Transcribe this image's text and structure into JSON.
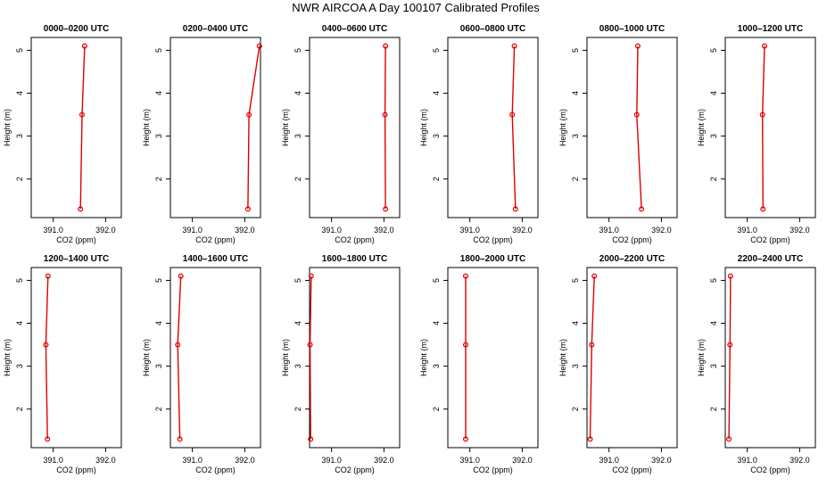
{
  "figure": {
    "title": "NWR AIRCOA A  Day 100107  Calibrated Profiles",
    "line_color": "#dd0000",
    "marker_color": "#dd0000"
  },
  "chart_data": [
    {
      "type": "line",
      "title": "0000–0200 UTC",
      "xlabel": "CO2 (ppm)",
      "ylabel": "Height (m)",
      "xlim": [
        390.58,
        392.3
      ],
      "ylim": [
        1.1,
        5.3
      ],
      "x_ticks": [
        391.0,
        392.0
      ],
      "y_ticks": [
        2,
        3,
        4,
        5
      ],
      "series": [
        {
          "x": [
            391.52,
            391.55,
            391.6
          ],
          "y": [
            1.3,
            3.5,
            5.1
          ]
        }
      ]
    },
    {
      "type": "line",
      "title": "0200–0400 UTC",
      "xlabel": "CO2 (ppm)",
      "ylabel": "Height (m)",
      "xlim": [
        390.58,
        392.3
      ],
      "ylim": [
        1.1,
        5.3
      ],
      "x_ticks": [
        391.0,
        392.0
      ],
      "y_ticks": [
        2,
        3,
        4,
        5
      ],
      "series": [
        {
          "x": [
            392.06,
            392.08,
            392.28
          ],
          "y": [
            1.3,
            3.5,
            5.1
          ]
        }
      ]
    },
    {
      "type": "line",
      "title": "0400–0600 UTC",
      "xlabel": "CO2 (ppm)",
      "ylabel": "Height (m)",
      "xlim": [
        390.58,
        392.3
      ],
      "ylim": [
        1.1,
        5.3
      ],
      "x_ticks": [
        391.0,
        392.0
      ],
      "y_ticks": [
        2,
        3,
        4,
        5
      ],
      "series": [
        {
          "x": [
            392.03,
            392.02,
            392.03
          ],
          "y": [
            1.3,
            3.5,
            5.1
          ]
        }
      ]
    },
    {
      "type": "line",
      "title": "0600–0800 UTC",
      "xlabel": "CO2 (ppm)",
      "ylabel": "Height (m)",
      "xlim": [
        390.58,
        392.3
      ],
      "ylim": [
        1.1,
        5.3
      ],
      "x_ticks": [
        391.0,
        392.0
      ],
      "y_ticks": [
        2,
        3,
        4,
        5
      ],
      "series": [
        {
          "x": [
            391.87,
            391.81,
            391.85
          ],
          "y": [
            1.3,
            3.5,
            5.1
          ]
        }
      ]
    },
    {
      "type": "line",
      "title": "0800–1000 UTC",
      "xlabel": "CO2 (ppm)",
      "ylabel": "Height (m)",
      "xlim": [
        390.58,
        392.3
      ],
      "ylim": [
        1.1,
        5.3
      ],
      "x_ticks": [
        391.0,
        392.0
      ],
      "y_ticks": [
        2,
        3,
        4,
        5
      ],
      "series": [
        {
          "x": [
            391.62,
            391.53,
            391.55
          ],
          "y": [
            1.3,
            3.5,
            5.1
          ]
        }
      ]
    },
    {
      "type": "line",
      "title": "1000–1200 UTC",
      "xlabel": "CO2 (ppm)",
      "ylabel": "Height (m)",
      "xlim": [
        390.58,
        392.3
      ],
      "ylim": [
        1.1,
        5.3
      ],
      "x_ticks": [
        391.0,
        392.0
      ],
      "y_ticks": [
        2,
        3,
        4,
        5
      ],
      "series": [
        {
          "x": [
            391.3,
            391.29,
            391.33
          ],
          "y": [
            1.3,
            3.5,
            5.1
          ]
        }
      ]
    },
    {
      "type": "line",
      "title": "1200–1400 UTC",
      "xlabel": "CO2 (ppm)",
      "ylabel": "Height (m)",
      "xlim": [
        390.58,
        392.3
      ],
      "ylim": [
        1.1,
        5.3
      ],
      "x_ticks": [
        391.0,
        392.0
      ],
      "y_ticks": [
        2,
        3,
        4,
        5
      ],
      "series": [
        {
          "x": [
            390.89,
            390.86,
            390.9
          ],
          "y": [
            1.3,
            3.5,
            5.1
          ]
        }
      ]
    },
    {
      "type": "line",
      "title": "1400–1600 UTC",
      "xlabel": "CO2 (ppm)",
      "ylabel": "Height (m)",
      "xlim": [
        390.58,
        392.3
      ],
      "ylim": [
        1.1,
        5.3
      ],
      "x_ticks": [
        391.0,
        392.0
      ],
      "y_ticks": [
        2,
        3,
        4,
        5
      ],
      "series": [
        {
          "x": [
            390.76,
            390.72,
            390.78
          ],
          "y": [
            1.3,
            3.5,
            5.1
          ]
        }
      ]
    },
    {
      "type": "line",
      "title": "1600–1800 UTC",
      "xlabel": "CO2 (ppm)",
      "ylabel": "Height (m)",
      "xlim": [
        390.58,
        392.3
      ],
      "ylim": [
        1.1,
        5.3
      ],
      "x_ticks": [
        391.0,
        392.0
      ],
      "y_ticks": [
        2,
        3,
        4,
        5
      ],
      "series": [
        {
          "x": [
            390.6,
            390.59,
            390.61
          ],
          "y": [
            1.3,
            3.5,
            5.1
          ]
        }
      ]
    },
    {
      "type": "line",
      "title": "1800–2000 UTC",
      "xlabel": "CO2 (ppm)",
      "ylabel": "Height (m)",
      "xlim": [
        390.58,
        392.3
      ],
      "ylim": [
        1.1,
        5.3
      ],
      "x_ticks": [
        391.0,
        392.0
      ],
      "y_ticks": [
        2,
        3,
        4,
        5
      ],
      "series": [
        {
          "x": [
            390.92,
            390.92,
            390.92
          ],
          "y": [
            1.3,
            3.5,
            5.1
          ]
        }
      ]
    },
    {
      "type": "line",
      "title": "2000–2200 UTC",
      "xlabel": "CO2 (ppm)",
      "ylabel": "Height (m)",
      "xlim": [
        390.58,
        392.3
      ],
      "ylim": [
        1.1,
        5.3
      ],
      "x_ticks": [
        391.0,
        392.0
      ],
      "y_ticks": [
        2,
        3,
        4,
        5
      ],
      "series": [
        {
          "x": [
            390.64,
            390.67,
            390.72
          ],
          "y": [
            1.3,
            3.5,
            5.1
          ]
        }
      ]
    },
    {
      "type": "line",
      "title": "2200–2400 UTC",
      "xlabel": "CO2 (ppm)",
      "ylabel": "Height (m)",
      "xlim": [
        390.58,
        392.3
      ],
      "ylim": [
        1.1,
        5.3
      ],
      "x_ticks": [
        391.0,
        392.0
      ],
      "y_ticks": [
        2,
        3,
        4,
        5
      ],
      "series": [
        {
          "x": [
            390.65,
            390.67,
            390.68
          ],
          "y": [
            1.3,
            3.5,
            5.1
          ]
        }
      ]
    }
  ]
}
